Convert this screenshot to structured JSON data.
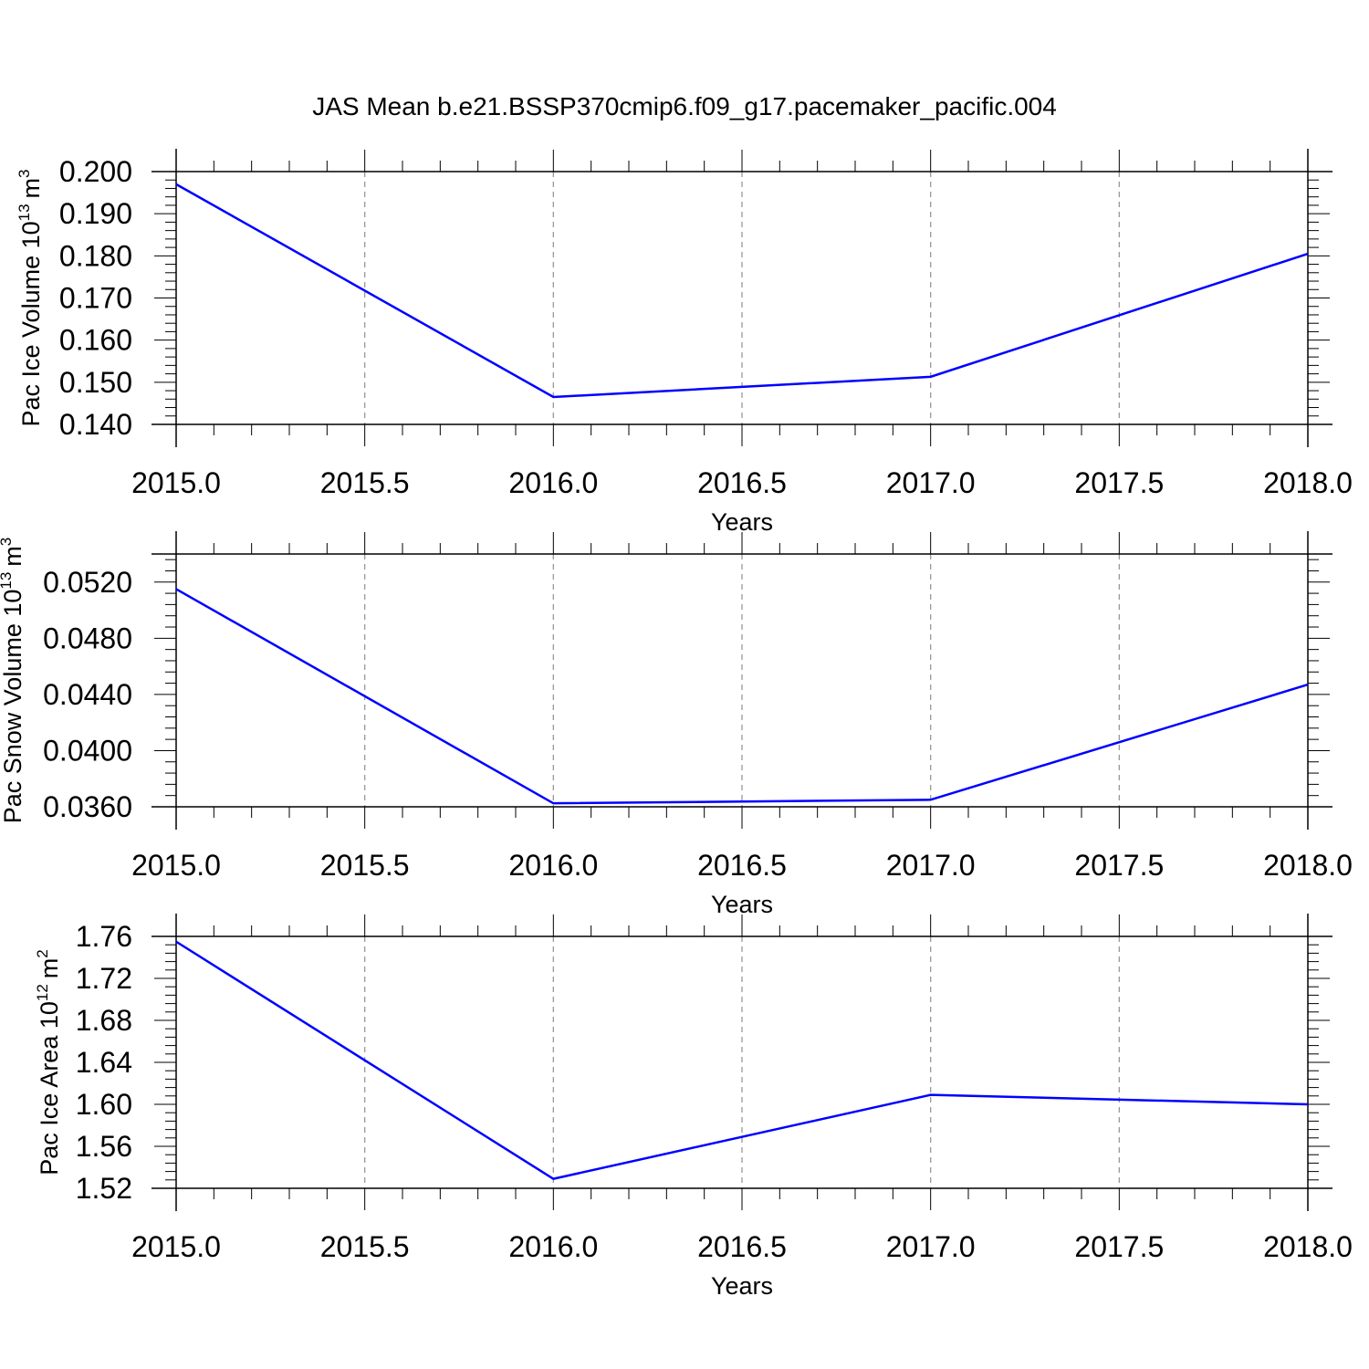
{
  "title": "JAS Mean b.e21.BSSP370cmip6.f09_g17.pacemaker_pacific.004",
  "chart_data": [
    {
      "type": "line",
      "xlabel": "Years",
      "ylabel": "Pac Ice Volume 10",
      "ylabel_exponent": "13",
      "ylabel_unit": "m",
      "ylabel_unit_power": "3",
      "xlim": [
        2015.0,
        2018.0
      ],
      "ylim": [
        0.14,
        0.2
      ],
      "x_ticks": [
        "2015.0",
        "2015.5",
        "2016.0",
        "2016.5",
        "2017.0",
        "2017.5",
        "2018.0"
      ],
      "y_ticks": [
        "0.140",
        "0.150",
        "0.160",
        "0.170",
        "0.180",
        "0.190",
        "0.200"
      ],
      "grid": "vertical dashed",
      "x": [
        2015,
        2016,
        2017,
        2018
      ],
      "values": [
        0.197,
        0.1465,
        0.1513,
        0.1805
      ],
      "line_color": "#0000ff"
    },
    {
      "type": "line",
      "xlabel": "Years",
      "ylabel": "Pac Snow Volume 10",
      "ylabel_exponent": "13",
      "ylabel_unit": "m",
      "ylabel_unit_power": "3",
      "xlim": [
        2015.0,
        2018.0
      ],
      "ylim": [
        0.036,
        0.054
      ],
      "x_ticks": [
        "2015.0",
        "2015.5",
        "2016.0",
        "2016.5",
        "2017.0",
        "2017.5",
        "2018.0"
      ],
      "y_ticks": [
        "0.0360",
        "0.0400",
        "0.0440",
        "0.0480",
        "0.0520"
      ],
      "grid": "vertical dashed",
      "x": [
        2015,
        2016,
        2017,
        2018
      ],
      "values": [
        0.0515,
        0.03625,
        0.0365,
        0.0447
      ],
      "line_color": "#0000ff"
    },
    {
      "type": "line",
      "xlabel": "Years",
      "ylabel": "Pac Ice Area 10",
      "ylabel_exponent": "12",
      "ylabel_unit": "m",
      "ylabel_unit_power": "2",
      "xlim": [
        2015.0,
        2018.0
      ],
      "ylim": [
        1.52,
        1.76
      ],
      "x_ticks": [
        "2015.0",
        "2015.5",
        "2016.0",
        "2016.5",
        "2017.0",
        "2017.5",
        "2018.0"
      ],
      "y_ticks": [
        "1.52",
        "1.56",
        "1.60",
        "1.64",
        "1.68",
        "1.72",
        "1.76"
      ],
      "grid": "vertical dashed",
      "x": [
        2015,
        2016,
        2017,
        2018
      ],
      "values": [
        1.755,
        1.529,
        1.609,
        1.6
      ],
      "line_color": "#0000ff"
    }
  ]
}
